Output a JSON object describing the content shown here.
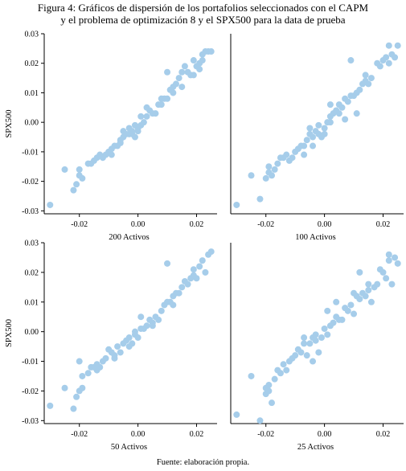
{
  "caption": {
    "line1": "Figura 4: Gráficos de dispersión de los portafolios seleccionados con el",
    "line1_sc": "CAPM",
    "line2_pre": "y el problema de optimización 8 y el",
    "line2_sc": "SPX",
    "line2_post": "500 para la data de prueba"
  },
  "source": "Fuente: elaboración propia.",
  "colors": {
    "point": "#a6cdea",
    "axis": "#000000"
  },
  "chart_data": [
    {
      "type": "scatter",
      "xlabel": "200 Activos",
      "ylabel": "SPX500",
      "xlim": [
        -0.032,
        0.027
      ],
      "ylim": [
        -0.031,
        0.03
      ],
      "xticks": [
        "-0.02",
        "0.00",
        "0.02"
      ],
      "yticks": [
        "0.03",
        "0.02",
        "0.01",
        "0.00",
        "-0.01",
        "-0.02",
        "-0.03"
      ],
      "points": [
        [
          -0.03,
          -0.028
        ],
        [
          -0.025,
          -0.016
        ],
        [
          -0.022,
          -0.023
        ],
        [
          -0.021,
          -0.021
        ],
        [
          -0.02,
          -0.018
        ],
        [
          -0.02,
          -0.016
        ],
        [
          -0.019,
          -0.019
        ],
        [
          -0.017,
          -0.014
        ],
        [
          -0.016,
          -0.014
        ],
        [
          -0.015,
          -0.013
        ],
        [
          -0.014,
          -0.012
        ],
        [
          -0.013,
          -0.011
        ],
        [
          -0.012,
          -0.012
        ],
        [
          -0.011,
          -0.011
        ],
        [
          -0.01,
          -0.01
        ],
        [
          -0.009,
          -0.011
        ],
        [
          -0.008,
          -0.008
        ],
        [
          -0.007,
          -0.008
        ],
        [
          -0.006,
          -0.007
        ],
        [
          -0.006,
          -0.006
        ],
        [
          -0.005,
          -0.003
        ],
        [
          -0.005,
          -0.005
        ],
        [
          -0.004,
          -0.004
        ],
        [
          -0.003,
          -0.004
        ],
        [
          -0.003,
          -0.002
        ],
        [
          -0.002,
          -0.004
        ],
        [
          -0.002,
          -0.003
        ],
        [
          -0.001,
          -0.005
        ],
        [
          -0.001,
          -0.001
        ],
        [
          0.0,
          -0.003
        ],
        [
          0.0,
          -0.002
        ],
        [
          0.001,
          -0.001
        ],
        [
          0.001,
          0.002
        ],
        [
          0.002,
          0.0
        ],
        [
          0.003,
          0.005
        ],
        [
          0.003,
          0.002
        ],
        [
          0.004,
          0.004
        ],
        [
          0.005,
          0.003
        ],
        [
          0.006,
          0.003
        ],
        [
          0.007,
          0.006
        ],
        [
          0.008,
          0.006
        ],
        [
          0.008,
          0.008
        ],
        [
          0.009,
          0.008
        ],
        [
          0.01,
          0.008
        ],
        [
          0.01,
          0.017
        ],
        [
          0.011,
          0.011
        ],
        [
          0.012,
          0.01
        ],
        [
          0.012,
          0.012
        ],
        [
          0.013,
          0.013
        ],
        [
          0.014,
          0.015
        ],
        [
          0.015,
          0.017
        ],
        [
          0.015,
          0.012
        ],
        [
          0.016,
          0.019
        ],
        [
          0.017,
          0.017
        ],
        [
          0.018,
          0.016
        ],
        [
          0.019,
          0.016
        ],
        [
          0.02,
          0.019
        ],
        [
          0.021,
          0.018
        ],
        [
          0.021,
          0.02
        ],
        [
          0.022,
          0.021
        ],
        [
          0.022,
          0.023
        ],
        [
          0.023,
          0.024
        ],
        [
          0.024,
          0.024
        ],
        [
          0.025,
          0.024
        ],
        [
          0.019,
          0.021
        ],
        [
          -0.009,
          -0.009
        ]
      ]
    },
    {
      "type": "scatter",
      "xlabel": "100 Activos",
      "ylabel": "",
      "xlim": [
        -0.032,
        0.027
      ],
      "ylim": [
        -0.031,
        0.03
      ],
      "xticks": [
        "-0.02",
        "0.00",
        "0.02"
      ],
      "yticks": [],
      "points": [
        [
          -0.03,
          -0.028
        ],
        [
          -0.025,
          -0.018
        ],
        [
          -0.022,
          -0.026
        ],
        [
          -0.02,
          -0.019
        ],
        [
          -0.019,
          -0.017
        ],
        [
          -0.019,
          -0.015
        ],
        [
          -0.018,
          -0.018
        ],
        [
          -0.017,
          -0.016
        ],
        [
          -0.016,
          -0.014
        ],
        [
          -0.015,
          -0.012
        ],
        [
          -0.014,
          -0.012
        ],
        [
          -0.013,
          -0.011
        ],
        [
          -0.012,
          -0.013
        ],
        [
          -0.011,
          -0.012
        ],
        [
          -0.01,
          -0.01
        ],
        [
          -0.009,
          -0.009
        ],
        [
          -0.008,
          -0.008
        ],
        [
          -0.007,
          -0.008
        ],
        [
          -0.006,
          -0.006
        ],
        [
          -0.005,
          -0.004
        ],
        [
          -0.005,
          -0.002
        ],
        [
          -0.004,
          -0.005
        ],
        [
          -0.003,
          -0.003
        ],
        [
          -0.002,
          -0.004
        ],
        [
          -0.002,
          -0.001
        ],
        [
          -0.001,
          -0.005
        ],
        [
          0.0,
          -0.002
        ],
        [
          0.0,
          -0.004
        ],
        [
          0.001,
          0.0
        ],
        [
          0.002,
          0.002
        ],
        [
          0.002,
          0.006
        ],
        [
          0.003,
          0.003
        ],
        [
          0.004,
          0.004
        ],
        [
          0.005,
          0.003
        ],
        [
          0.005,
          0.006
        ],
        [
          0.006,
          0.005
        ],
        [
          0.007,
          0.008
        ],
        [
          0.008,
          0.007
        ],
        [
          0.009,
          0.009
        ],
        [
          0.01,
          0.009
        ],
        [
          0.009,
          0.021
        ],
        [
          0.011,
          0.01
        ],
        [
          0.012,
          0.011
        ],
        [
          0.013,
          0.013
        ],
        [
          0.014,
          0.016
        ],
        [
          0.014,
          0.014
        ],
        [
          0.015,
          0.013
        ],
        [
          0.016,
          0.015
        ],
        [
          0.018,
          0.02
        ],
        [
          0.019,
          0.019
        ],
        [
          0.02,
          0.021
        ],
        [
          0.021,
          0.022
        ],
        [
          0.022,
          0.026
        ],
        [
          0.022,
          0.02
        ],
        [
          0.023,
          0.023
        ],
        [
          0.024,
          0.022
        ],
        [
          0.025,
          0.026
        ],
        [
          0.011,
          0.003
        ],
        [
          -0.007,
          -0.011
        ],
        [
          -0.004,
          -0.008
        ],
        [
          0.007,
          0.001
        ],
        [
          0.002,
          0.0
        ]
      ]
    },
    {
      "type": "scatter",
      "xlabel": "50 Activos",
      "ylabel": "SPX500",
      "xlim": [
        -0.032,
        0.027
      ],
      "ylim": [
        -0.031,
        0.03
      ],
      "xticks": [
        "-0.02",
        "0.00",
        "0.02"
      ],
      "yticks": [
        "0.03",
        "0.02",
        "0.01",
        "0.00",
        "-0.01",
        "-0.02",
        "-0.03"
      ],
      "points": [
        [
          -0.03,
          -0.025
        ],
        [
          -0.025,
          -0.019
        ],
        [
          -0.022,
          -0.026
        ],
        [
          -0.021,
          -0.022
        ],
        [
          -0.02,
          -0.02
        ],
        [
          -0.02,
          -0.01
        ],
        [
          -0.019,
          -0.015
        ],
        [
          -0.019,
          -0.019
        ],
        [
          -0.017,
          -0.014
        ],
        [
          -0.016,
          -0.012
        ],
        [
          -0.015,
          -0.012
        ],
        [
          -0.014,
          -0.011
        ],
        [
          -0.013,
          -0.012
        ],
        [
          -0.012,
          -0.01
        ],
        [
          -0.011,
          -0.009
        ],
        [
          -0.01,
          -0.006
        ],
        [
          -0.009,
          -0.007
        ],
        [
          -0.008,
          -0.008
        ],
        [
          -0.007,
          -0.005
        ],
        [
          -0.006,
          -0.007
        ],
        [
          -0.005,
          -0.004
        ],
        [
          -0.004,
          -0.003
        ],
        [
          -0.003,
          -0.005
        ],
        [
          -0.003,
          -0.002
        ],
        [
          -0.002,
          -0.004
        ],
        [
          -0.001,
          -0.001
        ],
        [
          -0.001,
          0.0
        ],
        [
          0.0,
          -0.002
        ],
        [
          0.001,
          0.001
        ],
        [
          0.001,
          0.005
        ],
        [
          0.002,
          0.001
        ],
        [
          0.003,
          0.002
        ],
        [
          0.004,
          0.004
        ],
        [
          0.005,
          0.003
        ],
        [
          0.006,
          0.005
        ],
        [
          0.007,
          0.004
        ],
        [
          0.008,
          0.007
        ],
        [
          0.009,
          0.009
        ],
        [
          0.01,
          0.01
        ],
        [
          0.01,
          0.023
        ],
        [
          0.011,
          0.01
        ],
        [
          0.012,
          0.012
        ],
        [
          0.013,
          0.013
        ],
        [
          0.014,
          0.013
        ],
        [
          0.015,
          0.015
        ],
        [
          0.016,
          0.017
        ],
        [
          0.017,
          0.016
        ],
        [
          0.018,
          0.018
        ],
        [
          0.019,
          0.019
        ],
        [
          0.02,
          0.018
        ],
        [
          0.021,
          0.022
        ],
        [
          0.022,
          0.024
        ],
        [
          0.023,
          0.02
        ],
        [
          0.024,
          0.026
        ],
        [
          0.025,
          0.027
        ],
        [
          -0.014,
          -0.013
        ],
        [
          -0.008,
          -0.009
        ],
        [
          0.005,
          0.002
        ],
        [
          0.012,
          0.009
        ],
        [
          0.019,
          0.021
        ]
      ]
    },
    {
      "type": "scatter",
      "xlabel": "25 Activos",
      "ylabel": "",
      "xlim": [
        -0.032,
        0.027
      ],
      "ylim": [
        -0.031,
        0.03
      ],
      "xticks": [
        "-0.02",
        "0.00",
        "0.02"
      ],
      "yticks": [],
      "points": [
        [
          -0.03,
          -0.028
        ],
        [
          -0.025,
          -0.015
        ],
        [
          -0.022,
          -0.03
        ],
        [
          -0.02,
          -0.019
        ],
        [
          -0.02,
          -0.021
        ],
        [
          -0.019,
          -0.018
        ],
        [
          -0.019,
          -0.02
        ],
        [
          -0.018,
          -0.024
        ],
        [
          -0.017,
          -0.016
        ],
        [
          -0.016,
          -0.013
        ],
        [
          -0.015,
          -0.014
        ],
        [
          -0.014,
          -0.011
        ],
        [
          -0.013,
          -0.013
        ],
        [
          -0.012,
          -0.01
        ],
        [
          -0.011,
          -0.009
        ],
        [
          -0.01,
          -0.008
        ],
        [
          -0.009,
          -0.006
        ],
        [
          -0.008,
          -0.007
        ],
        [
          -0.007,
          -0.004
        ],
        [
          -0.006,
          -0.008
        ],
        [
          -0.005,
          -0.004
        ],
        [
          -0.004,
          -0.002
        ],
        [
          -0.003,
          -0.003
        ],
        [
          -0.003,
          -0.001
        ],
        [
          -0.002,
          -0.007
        ],
        [
          -0.001,
          -0.002
        ],
        [
          0.0,
          0.001
        ],
        [
          0.001,
          -0.001
        ],
        [
          0.001,
          0.007
        ],
        [
          0.002,
          0.002
        ],
        [
          0.003,
          0.003
        ],
        [
          0.004,
          0.005
        ],
        [
          0.005,
          0.004
        ],
        [
          0.006,
          0.004
        ],
        [
          0.007,
          0.008
        ],
        [
          0.008,
          0.007
        ],
        [
          0.009,
          0.009
        ],
        [
          0.01,
          0.013
        ],
        [
          0.011,
          0.012
        ],
        [
          0.012,
          0.011
        ],
        [
          0.012,
          0.02
        ],
        [
          0.013,
          0.013
        ],
        [
          0.014,
          0.012
        ],
        [
          0.015,
          0.014
        ],
        [
          0.016,
          0.01
        ],
        [
          0.017,
          0.015
        ],
        [
          0.018,
          0.016
        ],
        [
          0.019,
          0.021
        ],
        [
          0.02,
          0.02
        ],
        [
          0.021,
          0.018
        ],
        [
          0.022,
          0.024
        ],
        [
          0.022,
          0.026
        ],
        [
          0.023,
          0.016
        ],
        [
          0.024,
          0.025
        ],
        [
          0.025,
          0.023
        ],
        [
          0.004,
          0.01
        ],
        [
          -0.004,
          -0.01
        ],
        [
          0.01,
          0.006
        ],
        [
          0.015,
          0.016
        ],
        [
          -0.007,
          -0.002
        ]
      ]
    }
  ]
}
